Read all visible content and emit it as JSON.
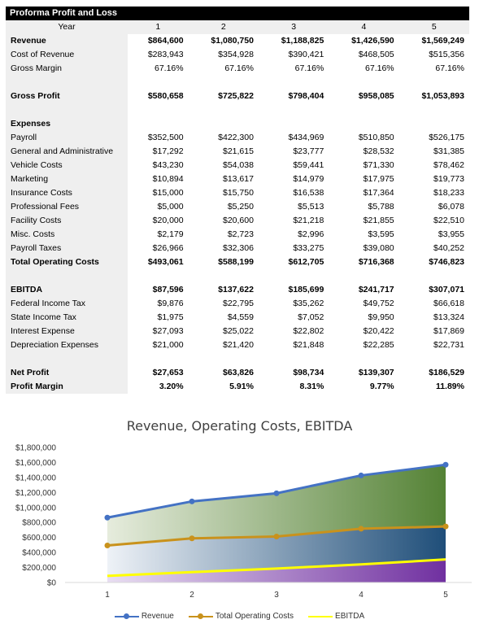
{
  "table": {
    "title": "Proforma Profit and Loss",
    "header_label": "Year",
    "years": [
      "1",
      "2",
      "3",
      "4",
      "5"
    ],
    "rows": [
      {
        "label": "Revenue",
        "bold": true,
        "values": [
          "$864,600",
          "$1,080,750",
          "$1,188,825",
          "$1,426,590",
          "$1,569,249"
        ]
      },
      {
        "label": "Cost of Revenue",
        "values": [
          "$283,943",
          "$354,928",
          "$390,421",
          "$468,505",
          "$515,356"
        ]
      },
      {
        "label": "Gross Margin",
        "values": [
          "67.16%",
          "67.16%",
          "67.16%",
          "67.16%",
          "67.16%"
        ]
      },
      {
        "label": "",
        "values": [
          "",
          "",
          "",
          "",
          ""
        ]
      },
      {
        "label": "Gross Profit",
        "bold": true,
        "values": [
          "$580,658",
          "$725,822",
          "$798,404",
          "$958,085",
          "$1,053,893"
        ]
      },
      {
        "label": "",
        "values": [
          "",
          "",
          "",
          "",
          ""
        ]
      },
      {
        "label": "Expenses",
        "bold": true,
        "values": [
          "",
          "",
          "",
          "",
          ""
        ]
      },
      {
        "label": "Payroll",
        "values": [
          "$352,500",
          "$422,300",
          "$434,969",
          "$510,850",
          "$526,175"
        ]
      },
      {
        "label": "General and Administrative",
        "values": [
          "$17,292",
          "$21,615",
          "$23,777",
          "$28,532",
          "$31,385"
        ]
      },
      {
        "label": "Vehicle Costs",
        "values": [
          "$43,230",
          "$54,038",
          "$59,441",
          "$71,330",
          "$78,462"
        ]
      },
      {
        "label": "Marketing",
        "values": [
          "$10,894",
          "$13,617",
          "$14,979",
          "$17,975",
          "$19,773"
        ]
      },
      {
        "label": "Insurance Costs",
        "values": [
          "$15,000",
          "$15,750",
          "$16,538",
          "$17,364",
          "$18,233"
        ]
      },
      {
        "label": "Professional Fees",
        "values": [
          "$5,000",
          "$5,250",
          "$5,513",
          "$5,788",
          "$6,078"
        ]
      },
      {
        "label": "Facility Costs",
        "values": [
          "$20,000",
          "$20,600",
          "$21,218",
          "$21,855",
          "$22,510"
        ]
      },
      {
        "label": "Misc. Costs",
        "values": [
          "$2,179",
          "$2,723",
          "$2,996",
          "$3,595",
          "$3,955"
        ]
      },
      {
        "label": "Payroll Taxes",
        "values": [
          "$26,966",
          "$32,306",
          "$33,275",
          "$39,080",
          "$40,252"
        ]
      },
      {
        "label": "Total Operating Costs",
        "bold": true,
        "values": [
          "$493,061",
          "$588,199",
          "$612,705",
          "$716,368",
          "$746,823"
        ]
      },
      {
        "label": "",
        "values": [
          "",
          "",
          "",
          "",
          ""
        ]
      },
      {
        "label": "EBITDA",
        "bold": true,
        "values": [
          "$87,596",
          "$137,622",
          "$185,699",
          "$241,717",
          "$307,071"
        ]
      },
      {
        "label": "Federal Income Tax",
        "values": [
          "$9,876",
          "$22,795",
          "$35,262",
          "$49,752",
          "$66,618"
        ]
      },
      {
        "label": "State Income Tax",
        "values": [
          "$1,975",
          "$4,559",
          "$7,052",
          "$9,950",
          "$13,324"
        ]
      },
      {
        "label": "Interest Expense",
        "values": [
          "$27,093",
          "$25,022",
          "$22,802",
          "$20,422",
          "$17,869"
        ]
      },
      {
        "label": "Depreciation Expenses",
        "values": [
          "$21,000",
          "$21,420",
          "$21,848",
          "$22,285",
          "$22,731"
        ]
      },
      {
        "label": "",
        "values": [
          "",
          "",
          "",
          "",
          ""
        ]
      },
      {
        "label": "Net Profit",
        "bold": true,
        "values": [
          "$27,653",
          "$63,826",
          "$98,734",
          "$139,307",
          "$186,529"
        ]
      },
      {
        "label": "Profit Margin",
        "bold": true,
        "values": [
          "3.20%",
          "5.91%",
          "8.31%",
          "9.77%",
          "11.89%"
        ]
      }
    ]
  },
  "chart_data": {
    "type": "area",
    "title": "Revenue, Operating Costs, EBITDA",
    "categories": [
      "1",
      "2",
      "3",
      "4",
      "5"
    ],
    "ylim": [
      0,
      1800000
    ],
    "yticks": [
      0,
      200000,
      400000,
      600000,
      800000,
      1000000,
      1200000,
      1400000,
      1600000,
      1800000
    ],
    "ytick_labels": [
      "$0",
      "$200,000",
      "$400,000",
      "$600,000",
      "$800,000",
      "$1,000,000",
      "$1,200,000",
      "$1,400,000",
      "$1,600,000",
      "$1,800,000"
    ],
    "series": [
      {
        "name": "Revenue",
        "values": [
          864600,
          1080750,
          1188825,
          1426590,
          1569249
        ],
        "color": "#4472c4",
        "marker": true
      },
      {
        "name": "Total Operating Costs",
        "values": [
          493061,
          588199,
          612705,
          716368,
          746823
        ],
        "color": "#c9921c",
        "marker": true
      },
      {
        "name": "EBITDA",
        "values": [
          87596,
          137622,
          185699,
          241717,
          307071
        ],
        "color": "#ffff00",
        "marker": false
      }
    ],
    "legend_position": "bottom",
    "grid": false
  }
}
